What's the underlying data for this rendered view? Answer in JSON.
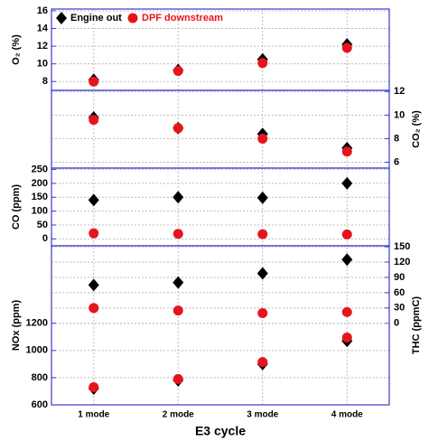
{
  "chart_data": {
    "type": "scatter",
    "categories": [
      "1 mode",
      "2 mode",
      "3 mode",
      "4 mode"
    ],
    "x_label": "E3 cycle",
    "series": [
      {
        "name": "Engine out",
        "color": "#000000",
        "marker": "diamond"
      },
      {
        "name": "DPF downstream",
        "color": "#e8141b",
        "marker": "circle"
      }
    ],
    "grid": true,
    "panels": [
      {
        "axes": [
          {
            "side": "left",
            "label": "O₂ (%)",
            "lim": [
              7,
              16.2
            ],
            "ticks": [
              8,
              10,
              12,
              14,
              16
            ],
            "values": [
              [
                8.2,
                9.3,
                10.5,
                12.2
              ],
              [
                8.0,
                9.2,
                10.1,
                11.8
              ]
            ]
          }
        ]
      },
      {
        "axes": [
          {
            "side": "right",
            "label": "CO₂ (%)",
            "lim": [
              5.5,
              12.1
            ],
            "ticks": [
              6,
              8,
              10,
              12
            ],
            "values": [
              [
                9.8,
                8.9,
                8.4,
                7.2
              ],
              [
                9.6,
                8.9,
                8.0,
                6.9
              ]
            ]
          }
        ]
      },
      {
        "axes": [
          {
            "side": "left",
            "label": "CO (ppm)",
            "lim": [
              -25,
              255
            ],
            "ticks": [
              0,
              50,
              100,
              150,
              200,
              250
            ],
            "values": [
              [
                140,
                150,
                148,
                200
              ],
              [
                20,
                18,
                17,
                16
              ]
            ]
          }
        ]
      },
      {
        "axes": [
          {
            "side": "right",
            "label": "THC (ppmC)",
            "lim": [
              -160,
              152
            ],
            "ticks": [
              0,
              30,
              60,
              90,
              120,
              150
            ],
            "values": [
              [
                75,
                80,
                98,
                125
              ],
              [
                30,
                25,
                20,
                22
              ]
            ]
          },
          {
            "side": "left",
            "label": "NOx (ppm)",
            "lim": [
              600,
              1770
            ],
            "ticks": [
              600,
              800,
              1000,
              1200
            ],
            "values": [
              [
                720,
                780,
                900,
                1070
              ],
              [
                730,
                790,
                915,
                1095
              ]
            ]
          }
        ]
      }
    ]
  }
}
